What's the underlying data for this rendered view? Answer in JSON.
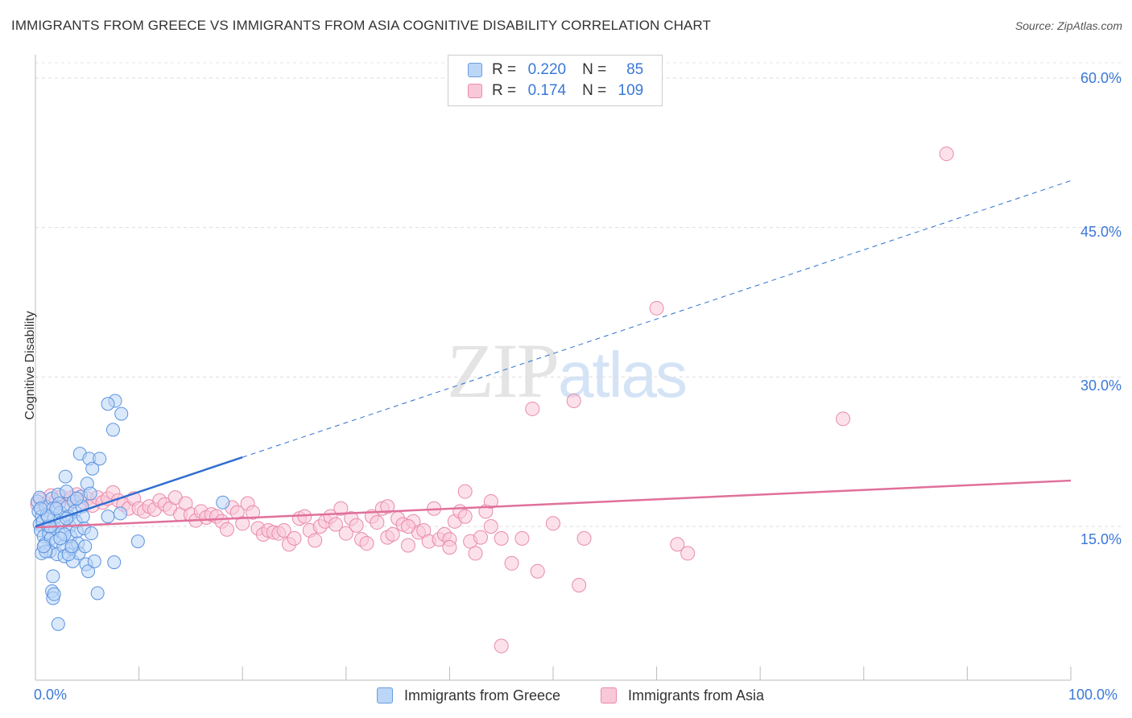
{
  "title": "IMMIGRANTS FROM GREECE VS IMMIGRANTS FROM ASIA COGNITIVE DISABILITY CORRELATION CHART",
  "source": "Source: ZipAtlas.com",
  "watermark": {
    "zip": "ZIP",
    "atlas": "atlas"
  },
  "legend": {
    "r_label": "R =",
    "n_label": "N =",
    "greece": {
      "r": "0.220",
      "n": "85"
    },
    "asia": {
      "r": "0.174",
      "n": "109"
    }
  },
  "colors": {
    "greece_fill": "#bcd6f7",
    "greece_stroke": "#5a93de",
    "greece_line": "#2f6fd0",
    "asia_fill": "#f9c8d8",
    "asia_stroke": "#e98aab",
    "asia_line": "#e0709a",
    "accent_text": "#3a78d8"
  },
  "chart_data": {
    "type": "scatter",
    "title": "IMMIGRANTS FROM GREECE VS IMMIGRANTS FROM ASIA COGNITIVE DISABILITY CORRELATION CHART",
    "xlabel": "",
    "ylabel": "Cognitive Disability",
    "xlim": [
      0,
      100
    ],
    "ylim": [
      0,
      63
    ],
    "x_tick_labels": [
      "0.0%",
      "100.0%"
    ],
    "y_ticks": [
      15,
      30,
      45,
      60
    ],
    "y_tick_labels": [
      "15.0%",
      "30.0%",
      "45.0%",
      "60.0%"
    ],
    "grid": true,
    "legend_position": "top-center",
    "series": [
      {
        "name": "Immigrants from Greece",
        "r": 0.22,
        "n": 85,
        "trend": {
          "x0": 0,
          "y0": 15.0,
          "x1": 100,
          "y1": 49.7,
          "solid_until_x": 20
        },
        "points": [
          [
            0.2,
            17.5
          ],
          [
            0.3,
            16.5
          ],
          [
            0.4,
            15.2
          ],
          [
            0.5,
            14.6
          ],
          [
            0.6,
            16.0
          ],
          [
            0.7,
            15.5
          ],
          [
            0.8,
            14.0
          ],
          [
            0.9,
            13.2
          ],
          [
            1.0,
            17.0
          ],
          [
            1.1,
            16.2
          ],
          [
            1.2,
            15.0
          ],
          [
            1.3,
            14.3
          ],
          [
            1.4,
            12.5
          ],
          [
            1.5,
            13.8
          ],
          [
            1.6,
            17.8
          ],
          [
            1.7,
            16.8
          ],
          [
            1.8,
            15.8
          ],
          [
            1.9,
            14.8
          ],
          [
            2.0,
            13.5
          ],
          [
            2.1,
            12.2
          ],
          [
            2.2,
            18.2
          ],
          [
            2.3,
            17.3
          ],
          [
            2.4,
            16.4
          ],
          [
            2.5,
            15.4
          ],
          [
            2.6,
            14.4
          ],
          [
            2.7,
            13.0
          ],
          [
            2.8,
            12.0
          ],
          [
            2.9,
            20.0
          ],
          [
            3.0,
            18.5
          ],
          [
            3.1,
            17.0
          ],
          [
            3.2,
            16.0
          ],
          [
            3.3,
            15.0
          ],
          [
            3.4,
            14.0
          ],
          [
            3.5,
            12.8
          ],
          [
            3.6,
            11.5
          ],
          [
            3.7,
            17.5
          ],
          [
            3.8,
            16.5
          ],
          [
            3.9,
            15.5
          ],
          [
            4.0,
            14.5
          ],
          [
            4.1,
            13.3
          ],
          [
            4.2,
            12.3
          ],
          [
            4.3,
            22.3
          ],
          [
            4.4,
            18.0
          ],
          [
            4.5,
            17.0
          ],
          [
            4.6,
            16.0
          ],
          [
            4.7,
            14.8
          ],
          [
            4.8,
            13.0
          ],
          [
            4.9,
            11.2
          ],
          [
            5.0,
            19.3
          ],
          [
            5.1,
            10.5
          ],
          [
            5.2,
            21.8
          ],
          [
            5.3,
            18.3
          ],
          [
            5.4,
            14.3
          ],
          [
            5.5,
            20.8
          ],
          [
            5.7,
            11.5
          ],
          [
            0.6,
            12.3
          ],
          [
            1.0,
            12.5
          ],
          [
            1.7,
            10.0
          ],
          [
            1.6,
            8.5
          ],
          [
            1.7,
            7.8
          ],
          [
            1.8,
            8.2
          ],
          [
            2.2,
            5.2
          ],
          [
            3.2,
            12.2
          ],
          [
            0.8,
            13.0
          ],
          [
            2.8,
            14.2
          ],
          [
            3.0,
            15.8
          ],
          [
            3.5,
            13.0
          ],
          [
            4.0,
            17.8
          ],
          [
            1.4,
            15.0
          ],
          [
            2.4,
            13.8
          ],
          [
            6.0,
            8.3
          ],
          [
            6.2,
            21.8
          ],
          [
            7.0,
            16.0
          ],
          [
            7.5,
            24.7
          ],
          [
            7.7,
            27.6
          ],
          [
            7.6,
            11.4
          ],
          [
            7.0,
            27.3
          ],
          [
            8.2,
            16.3
          ],
          [
            8.3,
            26.3
          ],
          [
            9.9,
            13.5
          ],
          [
            18.1,
            17.4
          ],
          [
            1.2,
            16.0
          ],
          [
            0.4,
            17.9
          ],
          [
            0.5,
            16.8
          ],
          [
            2.0,
            16.8
          ]
        ]
      },
      {
        "name": "Immigrants from Asia",
        "r": 0.174,
        "n": 109,
        "trend": {
          "x0": 0,
          "y0": 14.9,
          "x1": 100,
          "y1": 19.6
        },
        "points": [
          [
            0.2,
            17.2
          ],
          [
            0.5,
            17.7
          ],
          [
            1.0,
            17.3
          ],
          [
            1.5,
            18.1
          ],
          [
            2.0,
            17.6
          ],
          [
            2.5,
            18.0
          ],
          [
            3.0,
            17.2
          ],
          [
            3.5,
            17.9
          ],
          [
            4.0,
            18.2
          ],
          [
            4.5,
            17.5
          ],
          [
            5.0,
            17.8
          ],
          [
            5.5,
            17.1
          ],
          [
            6.0,
            17.9
          ],
          [
            6.5,
            17.4
          ],
          [
            7.0,
            17.8
          ],
          [
            7.5,
            18.4
          ],
          [
            8.0,
            17.6
          ],
          [
            8.5,
            17.2
          ],
          [
            9.0,
            16.8
          ],
          [
            9.5,
            17.8
          ],
          [
            10.0,
            16.8
          ],
          [
            10.5,
            16.5
          ],
          [
            11.0,
            17.0
          ],
          [
            11.5,
            16.7
          ],
          [
            12.0,
            17.6
          ],
          [
            12.5,
            17.2
          ],
          [
            13.0,
            16.8
          ],
          [
            13.5,
            17.9
          ],
          [
            14.0,
            16.2
          ],
          [
            14.5,
            17.3
          ],
          [
            15.0,
            16.2
          ],
          [
            15.5,
            15.6
          ],
          [
            16.0,
            16.5
          ],
          [
            16.5,
            15.9
          ],
          [
            17.0,
            16.2
          ],
          [
            17.5,
            16.0
          ],
          [
            18.0,
            15.5
          ],
          [
            18.5,
            14.7
          ],
          [
            19.0,
            16.9
          ],
          [
            19.5,
            16.4
          ],
          [
            20.0,
            15.3
          ],
          [
            20.5,
            17.3
          ],
          [
            21.0,
            16.4
          ],
          [
            21.5,
            14.8
          ],
          [
            22.0,
            14.2
          ],
          [
            22.5,
            14.6
          ],
          [
            23.0,
            14.4
          ],
          [
            23.5,
            14.3
          ],
          [
            24.0,
            14.6
          ],
          [
            24.5,
            13.2
          ],
          [
            25.0,
            13.8
          ],
          [
            25.5,
            15.8
          ],
          [
            26.0,
            16.0
          ],
          [
            26.5,
            14.6
          ],
          [
            27.0,
            13.6
          ],
          [
            27.5,
            15.0
          ],
          [
            28.0,
            15.5
          ],
          [
            28.5,
            16.0
          ],
          [
            29.0,
            15.2
          ],
          [
            29.5,
            16.8
          ],
          [
            30.0,
            14.3
          ],
          [
            30.5,
            15.8
          ],
          [
            31.0,
            15.1
          ],
          [
            31.5,
            13.7
          ],
          [
            32.0,
            13.3
          ],
          [
            32.5,
            16.0
          ],
          [
            33.0,
            15.4
          ],
          [
            33.5,
            16.8
          ],
          [
            34.0,
            13.9
          ],
          [
            34.5,
            14.2
          ],
          [
            35.0,
            15.8
          ],
          [
            35.5,
            15.2
          ],
          [
            36.0,
            13.1
          ],
          [
            36.5,
            15.5
          ],
          [
            37.0,
            14.4
          ],
          [
            37.5,
            14.6
          ],
          [
            38.0,
            13.5
          ],
          [
            38.5,
            16.8
          ],
          [
            39.0,
            13.7
          ],
          [
            39.5,
            14.2
          ],
          [
            40.0,
            13.7
          ],
          [
            40.5,
            15.5
          ],
          [
            41.0,
            16.5
          ],
          [
            41.5,
            16.0
          ],
          [
            42.0,
            13.5
          ],
          [
            42.5,
            12.3
          ],
          [
            43.0,
            13.9
          ],
          [
            43.5,
            16.5
          ],
          [
            44.0,
            15.0
          ],
          [
            45.0,
            13.8
          ],
          [
            46.0,
            11.3
          ],
          [
            47.0,
            13.8
          ],
          [
            48.5,
            10.5
          ],
          [
            50.0,
            15.3
          ],
          [
            52.5,
            9.1
          ],
          [
            53.0,
            13.8
          ],
          [
            60.0,
            36.9
          ],
          [
            62.0,
            13.2
          ],
          [
            63.0,
            12.3
          ],
          [
            78.0,
            25.8
          ],
          [
            88.0,
            52.4
          ],
          [
            52.0,
            27.6
          ],
          [
            48.0,
            26.8
          ],
          [
            45.0,
            3.0
          ],
          [
            44.0,
            17.5
          ],
          [
            41.5,
            18.5
          ],
          [
            40.0,
            12.9
          ],
          [
            36.0,
            15.0
          ],
          [
            34.0,
            17.0
          ]
        ]
      }
    ]
  },
  "bottom_legend": {
    "greece": "Immigrants from Greece",
    "asia": "Immigrants from Asia"
  },
  "axis": {
    "x_min_label": "0.0%",
    "x_max_label": "100.0%",
    "y_labels": [
      "60.0%",
      "45.0%",
      "30.0%",
      "15.0%"
    ],
    "y_title": "Cognitive Disability"
  }
}
